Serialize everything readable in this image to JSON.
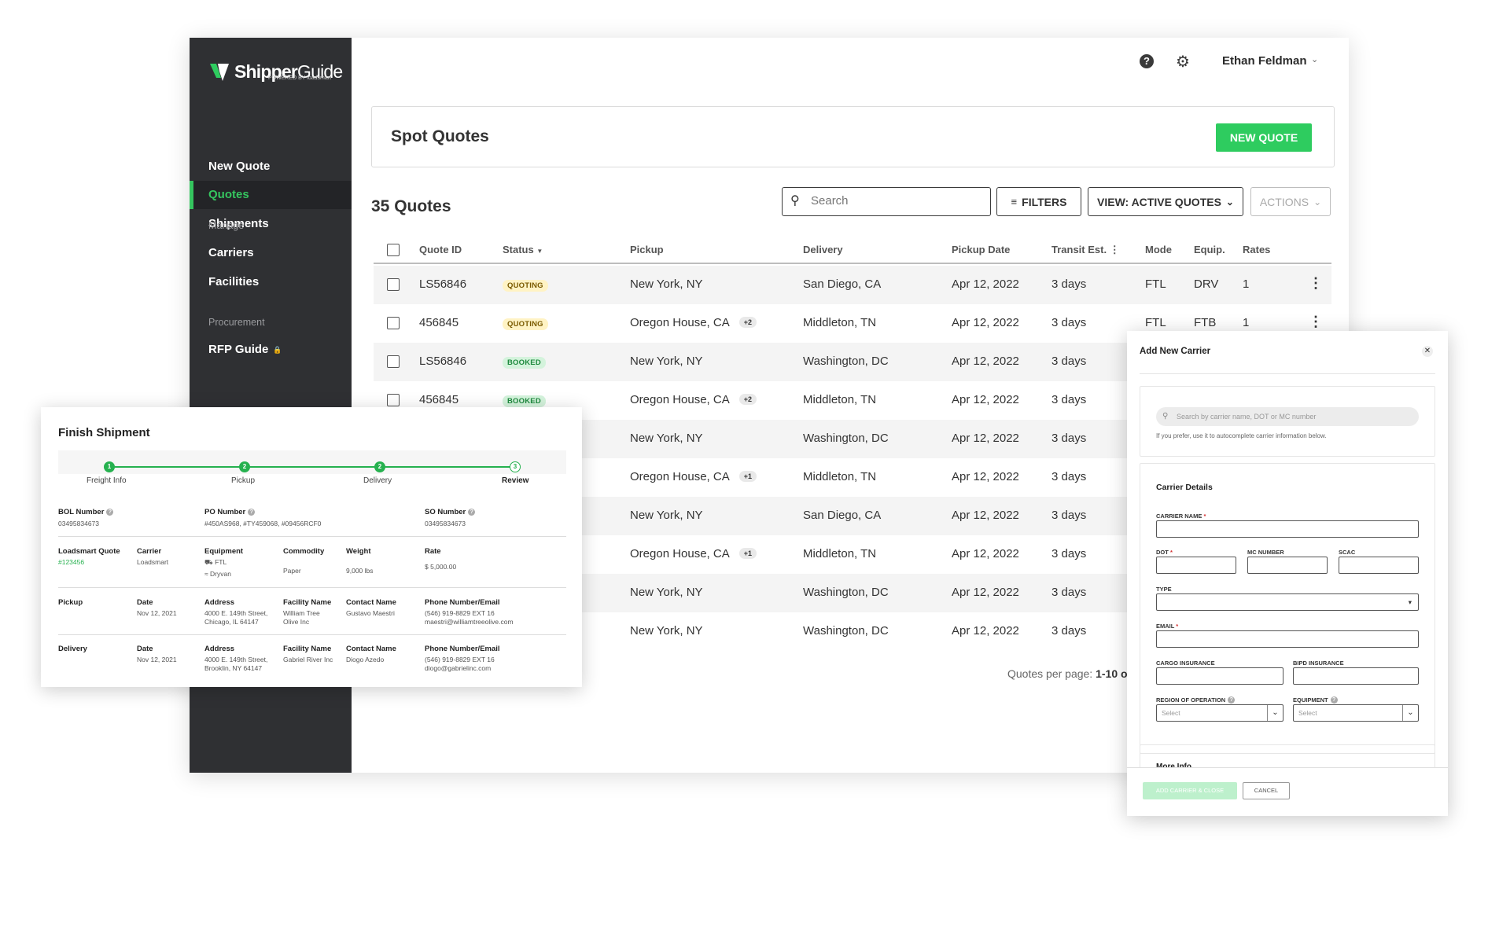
{
  "brand": {
    "name_bold": "Shipper",
    "name_light": "Guide",
    "tagline": "POWERED BY loadsmart",
    "accent": "#2ecc5f"
  },
  "sidebar": {
    "items": [
      {
        "label": "New Quote"
      },
      {
        "label": "Quotes"
      },
      {
        "label": "Shipments"
      }
    ],
    "manage_title": "Manage",
    "manage_items": [
      {
        "label": "Carriers"
      },
      {
        "label": "Facilities"
      }
    ],
    "procurement_title": "Procurement",
    "procurement_items": [
      {
        "label": "RFP Guide"
      }
    ]
  },
  "topbar": {
    "help_icon": "?",
    "user_name": "Ethan Feldman"
  },
  "page": {
    "title": "Spot Quotes",
    "new_quote_label": "NEW QUOTE",
    "count_title": "35 Quotes"
  },
  "toolbar": {
    "search_placeholder": "Search",
    "filters_label": "FILTERS",
    "view_label": "VIEW: ACTIVE QUOTES",
    "actions_label": "ACTIONS"
  },
  "table": {
    "columns": [
      "Quote ID",
      "Status",
      "Pickup",
      "Delivery",
      "Pickup Date",
      "Transit Est.",
      "Mode",
      "Equip.",
      "Rates"
    ],
    "rows": [
      {
        "id": "LS56846",
        "status": "QUOTING",
        "pickup": "New York, NY",
        "extra": "",
        "delivery": "San Diego, CA",
        "date": "Apr 12, 2022",
        "transit": "3 days",
        "mode": "FTL",
        "equip": "DRV",
        "rates": "1"
      },
      {
        "id": "456845",
        "status": "QUOTING",
        "pickup": "Oregon House, CA",
        "extra": "+2",
        "delivery": "Middleton, TN",
        "date": "Apr 12, 2022",
        "transit": "3 days",
        "mode": "FTL",
        "equip": "FTB",
        "rates": "1"
      },
      {
        "id": "LS56846",
        "status": "BOOKED",
        "pickup": "New York, NY",
        "extra": "",
        "delivery": "Washington, DC",
        "date": "Apr 12, 2022",
        "transit": "3 days"
      },
      {
        "id": "456845",
        "status": "BOOKED",
        "pickup": "Oregon House, CA",
        "extra": "+2",
        "delivery": "Middleton, TN",
        "date": "Apr 12, 2022",
        "transit": "3 days"
      },
      {
        "pickup": "New York, NY",
        "extra": "",
        "delivery": "Washington, DC",
        "date": "Apr 12, 2022",
        "transit": "3 days"
      },
      {
        "pickup": "Oregon House, CA",
        "extra": "+1",
        "delivery": "Middleton, TN",
        "date": "Apr 12, 2022",
        "transit": "3 days"
      },
      {
        "pickup": "New York, NY",
        "extra": "",
        "delivery": "San Diego, CA",
        "date": "Apr 12, 2022",
        "transit": "3 days"
      },
      {
        "pickup": "Oregon House, CA",
        "extra": "+1",
        "delivery": "Middleton, TN",
        "date": "Apr 12, 2022",
        "transit": "3 days"
      },
      {
        "pickup": "New York, NY",
        "extra": "",
        "delivery": "Washington, DC",
        "date": "Apr 12, 2022",
        "transit": "3 days"
      },
      {
        "pickup": "New York, NY",
        "extra": "",
        "delivery": "Washington, DC",
        "date": "Apr 12, 2022",
        "transit": "3 days"
      }
    ],
    "pagination_label": "Quotes per page:",
    "pagination_range": "1-10 o"
  },
  "finish": {
    "title": "Finish Shipment",
    "steps": [
      {
        "num": "1",
        "label": "Freight Info"
      },
      {
        "num": "2",
        "label": "Pickup"
      },
      {
        "num": "2",
        "label": "Delivery"
      },
      {
        "num": "3",
        "label": "Review"
      }
    ],
    "bol_label": "BOL Number",
    "bol_value": "03495834673",
    "po_label": "PO Number",
    "po_value": "#450AS968, #TY459068, #09456RCF0",
    "so_label": "SO Number",
    "so_value": "03495834673",
    "quote_label": "Loadsmart Quote",
    "quote_value": "#123456",
    "carrier_label": "Carrier",
    "carrier_value": "Loadsmart",
    "equipment_label": "Equipment",
    "equipment_1": "FTL",
    "equipment_2": "Dryvan",
    "commodity_label": "Commodity",
    "commodity_value": "Paper",
    "weight_label": "Weight",
    "weight_value": "9,000 lbs",
    "rate_label": "Rate",
    "rate_value": "$ 5,000.00",
    "pickup": {
      "label": "Pickup",
      "date_label": "Date",
      "date": "Nov 12, 2021",
      "address_label": "Address",
      "address_1": "4000 E. 149th Street,",
      "address_2": "Chicago, IL 64147",
      "facility_label": "Facility Name",
      "facility_1": "William Tree",
      "facility_2": "Olive Inc",
      "contact_label": "Contact Name",
      "contact": "Gustavo Maestri",
      "phone_label": "Phone Number/Email",
      "phone": "(546) 919-8829 EXT 16",
      "email": "maestri@williamtreeolive.com"
    },
    "delivery": {
      "label": "Delivery",
      "date_label": "Date",
      "date": "Nov 12, 2021",
      "address_label": "Address",
      "address_1": "4000 E. 149th Street,",
      "address_2": "Brooklin, NY 64147",
      "facility_label": "Facility Name",
      "facility_1": "Gabriel River Inc",
      "contact_label": "Contact Name",
      "contact": "Diogo Azedo",
      "phone_label": "Phone Number/Email",
      "phone": "(546) 919-8829 EXT 16",
      "email": "diogo@gabrielinc.com"
    }
  },
  "modal": {
    "title": "Add New Carrier",
    "search_placeholder": "Search by carrier name, DOT or MC number",
    "hint": "If you prefer, use it to autocomplete carrier information below.",
    "details_title": "Carrier Details",
    "carrier_name_label": "CARRIER NAME",
    "dot_label": "DOT",
    "mc_label": "MC NUMBER",
    "scac_label": "SCAC",
    "type_label": "TYPE",
    "email_label": "EMAIL",
    "cargo_label": "CARGO INSURANCE",
    "bipd_label": "BIPD INSURANCE",
    "region_label": "REGION OF OPERATION",
    "equipment_label": "EQUIPMENT",
    "select_placeholder": "Select",
    "more_info_title": "More Info",
    "add_button": "ADD CARRIER & CLOSE",
    "cancel_button": "CANCEL"
  }
}
